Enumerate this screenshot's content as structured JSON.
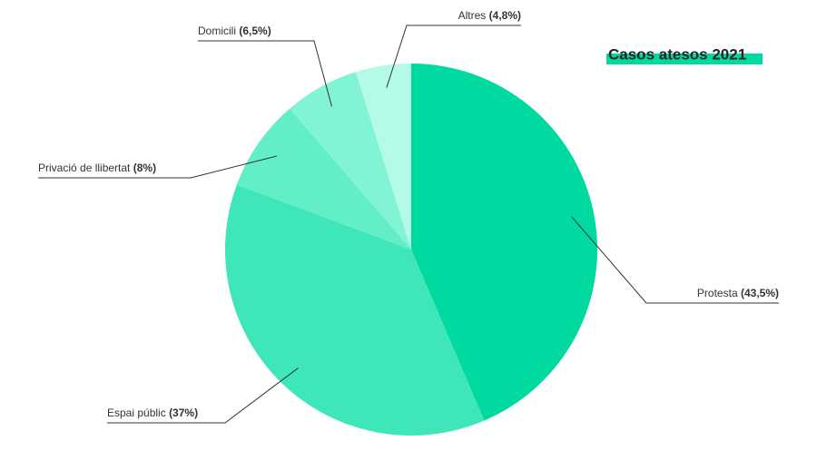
{
  "chart_data": {
    "type": "pie",
    "title": "Casos atesos 2021",
    "categories": [
      "Protesta",
      "Espai públic",
      "Privació de llibertat",
      "Domicili",
      "Altres"
    ],
    "values": [
      43.5,
      37,
      8,
      6.5,
      4.8
    ],
    "value_labels": [
      "(43,5%)",
      "(37%)",
      "(8%)",
      "(6,5%)",
      "(4,8%)"
    ],
    "colors": [
      "#00d9a0",
      "#3fe6b9",
      "#62eec6",
      "#80f4d5",
      "#b3fbe7"
    ]
  }
}
